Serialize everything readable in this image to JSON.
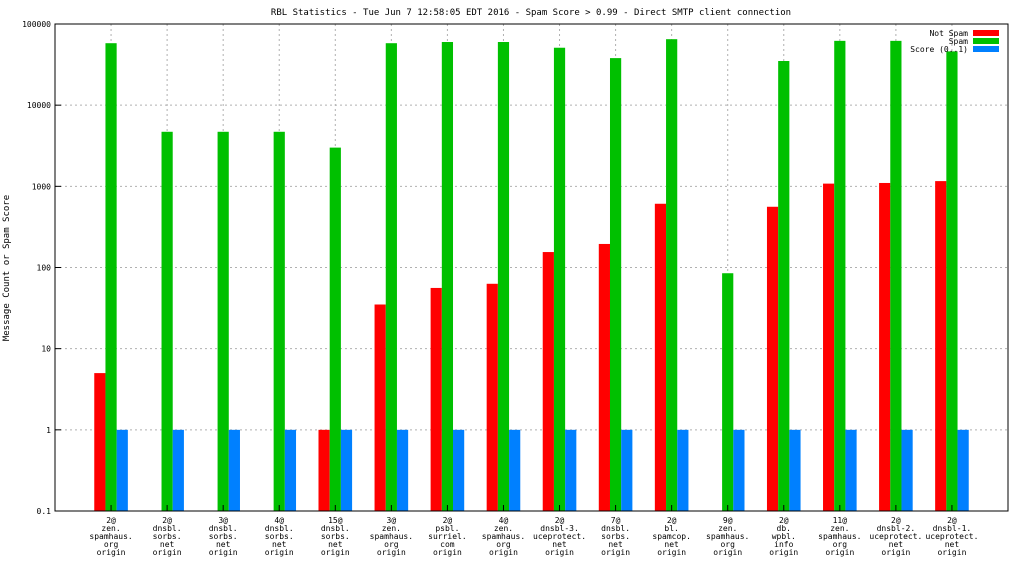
{
  "chart_data": {
    "type": "bar",
    "title": "RBL Statistics - Tue Jun  7 12:58:05 EDT 2016 - Spam Score > 0.99 - Direct SMTP client connection",
    "xlabel": "",
    "ylabel": "Message Count or Spam Score",
    "y_scale": "log",
    "ylim": [
      0.1,
      100000
    ],
    "y_ticks": [
      "0.1",
      "1",
      "10",
      "100",
      "1000",
      "10000",
      "100000"
    ],
    "grid": true,
    "legend_position": "top-right",
    "categories": [
      [
        "2@",
        "zen.",
        "spamhaus.",
        "org",
        "origin"
      ],
      [
        "2@",
        "dnsbl.",
        "sorbs.",
        "net",
        "origin"
      ],
      [
        "3@",
        "dnsbl.",
        "sorbs.",
        "net",
        "origin"
      ],
      [
        "4@",
        "dnsbl.",
        "sorbs.",
        "net",
        "origin"
      ],
      [
        "15@",
        "dnsbl.",
        "sorbs.",
        "net",
        "origin"
      ],
      [
        "3@",
        "zen.",
        "spamhaus.",
        "org",
        "origin"
      ],
      [
        "2@",
        "psbl.",
        "surriel.",
        "com",
        "origin"
      ],
      [
        "4@",
        "zen.",
        "spamhaus.",
        "org",
        "origin"
      ],
      [
        "2@",
        "dnsbl-3.",
        "uceprotect.",
        "net",
        "origin"
      ],
      [
        "7@",
        "dnsbl.",
        "sorbs.",
        "net",
        "origin"
      ],
      [
        "2@",
        "bl.",
        "spamcop.",
        "net",
        "origin"
      ],
      [
        "9@",
        "zen.",
        "spamhaus.",
        "org",
        "origin"
      ],
      [
        "2@",
        "db.",
        "wpbl.",
        "info",
        "origin"
      ],
      [
        "11@",
        "zen.",
        "spamhaus.",
        "org",
        "origin"
      ],
      [
        "2@",
        "dnsbl-2.",
        "uceprotect.",
        "net",
        "origin"
      ],
      [
        "2@",
        "dnsbl-1.",
        "uceprotect.",
        "net",
        "origin"
      ]
    ],
    "series": [
      {
        "name": "Not Spam",
        "color": "#ff0000",
        "values": [
          5,
          null,
          null,
          null,
          1,
          35,
          56,
          63,
          155,
          195,
          610,
          null,
          560,
          1080,
          1100,
          1160
        ]
      },
      {
        "name": "Spam",
        "color": "#00c000",
        "values": [
          58000,
          4700,
          4700,
          4700,
          3000,
          58000,
          60000,
          60000,
          51000,
          38000,
          65000,
          85,
          35000,
          62000,
          62000,
          46000
        ]
      },
      {
        "name": "Score (0..1)",
        "color": "#0080ff",
        "values": [
          1,
          1,
          1,
          1,
          1,
          1,
          1,
          1,
          1,
          1,
          1,
          1,
          1,
          1,
          1,
          1
        ]
      }
    ]
  }
}
